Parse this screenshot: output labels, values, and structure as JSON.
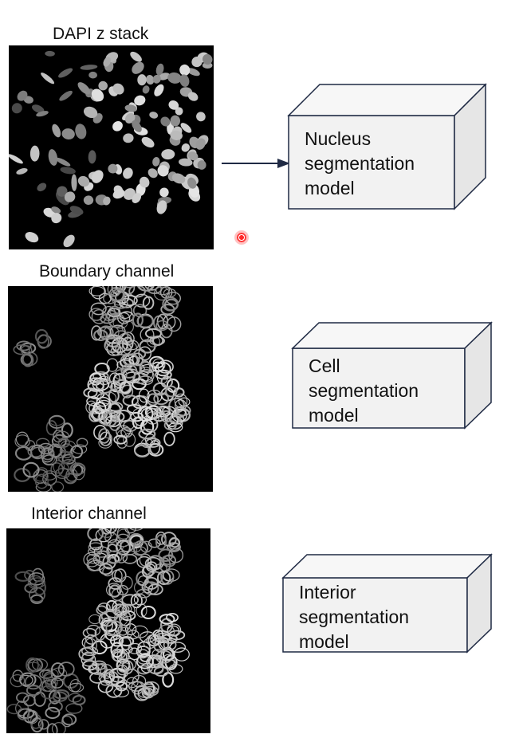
{
  "panels": [
    {
      "label": "DAPI z stack"
    },
    {
      "label": "Boundary channel"
    },
    {
      "label": "Interior channel"
    }
  ],
  "models": [
    {
      "line1": "Nucleus",
      "line2": "segmentation",
      "line3": "model"
    },
    {
      "line1": "Cell",
      "line2": "segmentation",
      "line3": "model"
    },
    {
      "line1": "Interior",
      "line2": "segmentation",
      "line3": "model"
    }
  ],
  "colors": {
    "box_face": "#f2f2f2",
    "box_edge": "#1f2a44",
    "box_side": "#e6e6e6",
    "arrow": "#1f2a44",
    "pointer": "#ff2a2a"
  }
}
